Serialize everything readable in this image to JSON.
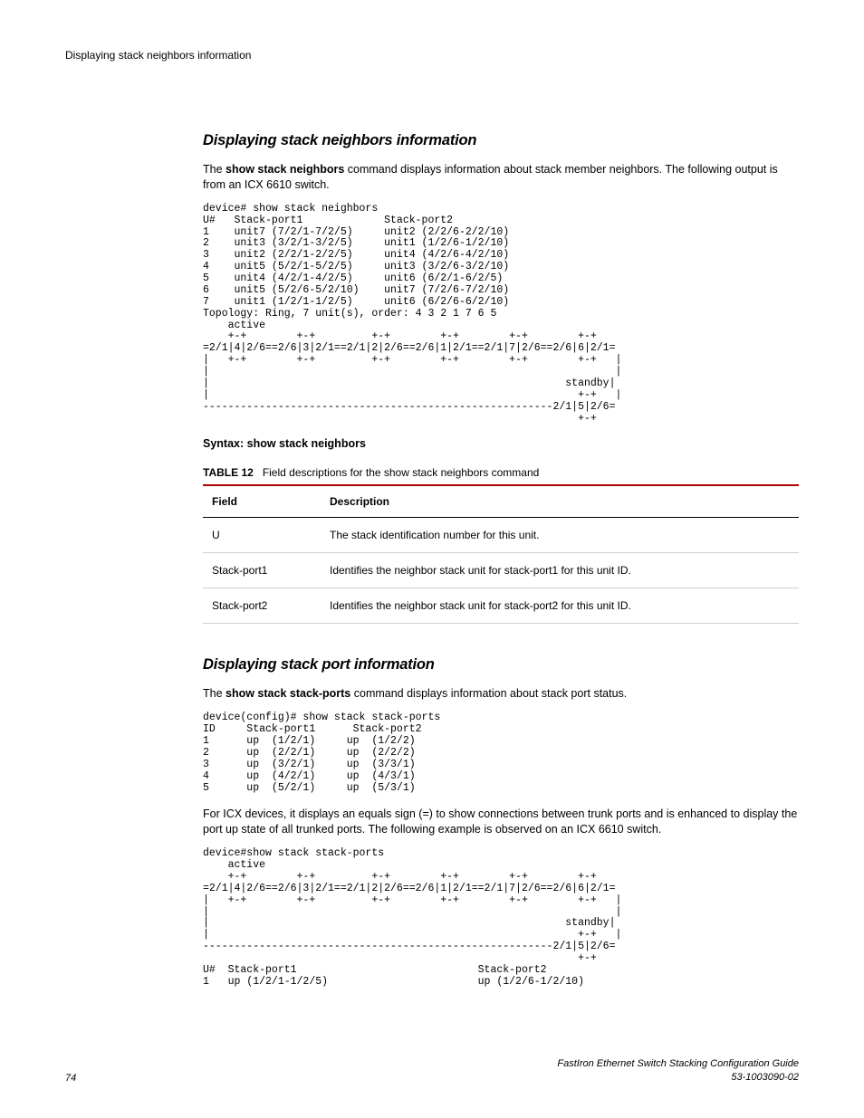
{
  "runningHead": "Displaying stack neighbors information",
  "section1": {
    "title": "Displaying stack neighbors information",
    "para1_pre": "The ",
    "para1_bold": "show stack neighbors",
    "para1_post": " command displays information about stack member neighbors. The following output is from an ICX 6610 switch.",
    "code": "device# show stack neighbors\nU#   Stack-port1             Stack-port2\n1    unit7 (7/2/1-7/2/5)     unit2 (2/2/6-2/2/10)\n2    unit3 (3/2/1-3/2/5)     unit1 (1/2/6-1/2/10)\n3    unit2 (2/2/1-2/2/5)     unit4 (4/2/6-4/2/10)\n4    unit5 (5/2/1-5/2/5)     unit3 (3/2/6-3/2/10)\n5    unit4 (4/2/1-4/2/5)     unit6 (6/2/1-6/2/5)\n6    unit5 (5/2/6-5/2/10)    unit7 (7/2/6-7/2/10)\n7    unit1 (1/2/1-1/2/5)     unit6 (6/2/6-6/2/10)\nTopology: Ring, 7 unit(s), order: 4 3 2 1 7 6 5\n    active\n    +-+        +-+         +-+        +-+        +-+        +-+\n=2/1|4|2/6==2/6|3|2/1==2/1|2|2/6==2/6|1|2/1==2/1|7|2/6==2/6|6|2/1=\n|   +-+        +-+         +-+        +-+        +-+        +-+   |\n|                                                                 |\n|                                                         standby|\n|                                                           +-+   |\n--------------------------------------------------------2/1|5|2/6=\n                                                            +-+",
    "syntax": "Syntax: show stack neighbors"
  },
  "table": {
    "captionLabel": "TABLE 12",
    "captionText": "Field descriptions for the show stack neighbors command",
    "headField": "Field",
    "headDesc": "Description",
    "rows": [
      {
        "field": "U",
        "desc": "The stack identification number for this unit."
      },
      {
        "field": "Stack-port1",
        "desc": "Identifies the neighbor stack unit for stack-port1 for this unit ID."
      },
      {
        "field": "Stack-port2",
        "desc": "Identifies the neighbor stack unit for stack-port2 for this unit ID."
      }
    ]
  },
  "section2": {
    "title": "Displaying stack port information",
    "para1_pre": "The ",
    "para1_bold": "show stack stack-ports",
    "para1_post": " command displays information about stack port status.",
    "code1": "device(config)# show stack stack-ports\nID     Stack-port1      Stack-port2\n1      up  (1/2/1)     up  (1/2/2)\n2      up  (2/2/1)     up  (2/2/2)\n3      up  (3/2/1)     up  (3/3/1)\n4      up  (4/2/1)     up  (4/3/1)\n5      up  (5/2/1)     up  (5/3/1)",
    "para2": "For ICX devices, it displays an equals sign (=) to show connections between trunk ports and is enhanced to display the port up state of all trunked ports. The following example is observed on an ICX 6610 switch.",
    "code2": "device#show stack stack-ports\n    active\n    +-+        +-+         +-+        +-+        +-+        +-+\n=2/1|4|2/6==2/6|3|2/1==2/1|2|2/6==2/6|1|2/1==2/1|7|2/6==2/6|6|2/1=\n|   +-+        +-+         +-+        +-+        +-+        +-+   |\n|                                                                 |\n|                                                         standby|\n|                                                           +-+   |\n--------------------------------------------------------2/1|5|2/6=\n                                                            +-+\nU#  Stack-port1                             Stack-port2\n1   up (1/2/1-1/2/5)                        up (1/2/6-1/2/10)"
  },
  "footer": {
    "pageNum": "74",
    "line1": "FastIron Ethernet Switch Stacking Configuration Guide",
    "line2": "53-1003090-02"
  }
}
